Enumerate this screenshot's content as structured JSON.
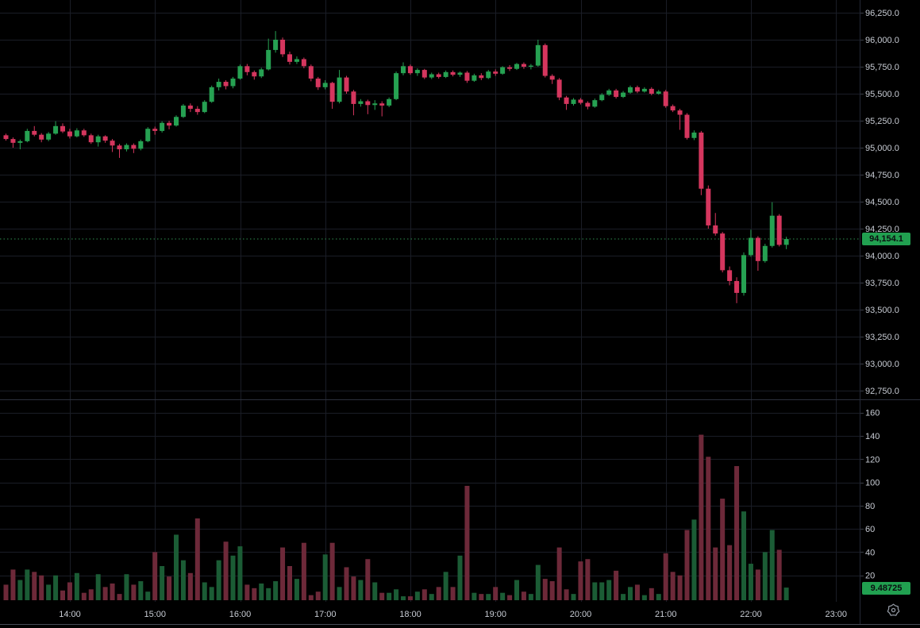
{
  "colors": {
    "background": "#000000",
    "grid": "#1a1d26",
    "axis_text": "#c8ccd4",
    "tick": "#3a3e47",
    "axis_border": "#242836",
    "pane_separator": "#2c303c",
    "frame_bottom": "#474b56",
    "up": "#26a152",
    "down": "#d5365e",
    "volume_up": "#1b5c35",
    "volume_down": "#6d2939",
    "price_line": "#2f8f52",
    "tag_bg": "#21a050",
    "tag_text": "#0b0e11",
    "icon": "#9096a0"
  },
  "price_axis": {
    "tick_labels": [
      "96,250.0",
      "96,000.0",
      "95,750.0",
      "95,500.0",
      "95,250.0",
      "95,000.0",
      "94,750.0",
      "94,500.0",
      "94,250.0",
      "94,000.0",
      "93,750.0",
      "93,500.0",
      "93,250.0",
      "93,000.0",
      "92,750.0"
    ],
    "last_price_label": "94,154.1",
    "last_price_value": 94154.1
  },
  "volume_axis": {
    "tick_labels": [
      "160",
      "140",
      "120",
      "100",
      "80",
      "60",
      "40",
      "20"
    ],
    "last_volume_label": "9.48725",
    "last_volume_value": 9.48725
  },
  "time_axis": {
    "tick_labels": [
      "14:00",
      "15:00",
      "16:00",
      "17:00",
      "18:00",
      "19:00",
      "20:00",
      "21:00",
      "22:00",
      "23:00"
    ],
    "settings_icon": "gear-icon"
  },
  "chart_data": {
    "type": "candlestick",
    "interval": "5m",
    "grid": true,
    "legend_position": "none",
    "price_ylim_visible": [
      92750,
      96250
    ],
    "volume_ylim_visible": [
      0,
      160
    ],
    "last_price": 94154.1,
    "last_volume": 9.48725,
    "columns": [
      "time",
      "open",
      "high",
      "low",
      "close",
      "volume"
    ],
    "candles": [
      [
        "13:15",
        95115,
        95130,
        95065,
        95080,
        12
      ],
      [
        "13:20",
        95080,
        95095,
        95000,
        95045,
        25
      ],
      [
        "13:25",
        95045,
        95075,
        94985,
        95060,
        16
      ],
      [
        "13:30",
        95060,
        95175,
        95050,
        95155,
        25
      ],
      [
        "13:35",
        95155,
        95200,
        95105,
        95120,
        23
      ],
      [
        "13:40",
        95120,
        95135,
        95050,
        95075,
        20
      ],
      [
        "13:45",
        95075,
        95145,
        95060,
        95130,
        12
      ],
      [
        "13:50",
        95130,
        95245,
        95120,
        95200,
        20
      ],
      [
        "13:55",
        95200,
        95225,
        95135,
        95150,
        7
      ],
      [
        "14:00",
        95150,
        95175,
        95085,
        95105,
        14
      ],
      [
        "14:05",
        95105,
        95180,
        95095,
        95160,
        22
      ],
      [
        "14:10",
        95160,
        95175,
        95100,
        95115,
        5
      ],
      [
        "14:15",
        95115,
        95130,
        95035,
        95050,
        8
      ],
      [
        "14:20",
        95050,
        95120,
        95010,
        95105,
        21
      ],
      [
        "14:25",
        95105,
        95115,
        95045,
        95065,
        10
      ],
      [
        "14:30",
        95065,
        95080,
        94960,
        95020,
        13
      ],
      [
        "14:35",
        95020,
        95035,
        94905,
        94985,
        4
      ],
      [
        "14:40",
        94985,
        95040,
        94965,
        95025,
        21
      ],
      [
        "14:45",
        95025,
        95040,
        94950,
        94990,
        12
      ],
      [
        "14:50",
        94990,
        95075,
        94975,
        95060,
        15
      ],
      [
        "14:55",
        95060,
        95190,
        95050,
        95175,
        6
      ],
      [
        "15:00",
        95175,
        95195,
        95120,
        95155,
        40
      ],
      [
        "15:05",
        95155,
        95245,
        95140,
        95230,
        28
      ],
      [
        "15:10",
        95230,
        95250,
        95170,
        95205,
        19
      ],
      [
        "15:15",
        95205,
        95300,
        95195,
        95285,
        55
      ],
      [
        "15:20",
        95285,
        95405,
        95275,
        95390,
        33
      ],
      [
        "15:25",
        95390,
        95410,
        95330,
        95360,
        22
      ],
      [
        "15:30",
        95360,
        95385,
        95305,
        95330,
        69
      ],
      [
        "15:35",
        95330,
        95440,
        95320,
        95425,
        14
      ],
      [
        "15:40",
        95425,
        95575,
        95415,
        95560,
        10
      ],
      [
        "15:45",
        95560,
        95640,
        95530,
        95610,
        33
      ],
      [
        "15:50",
        95610,
        95625,
        95540,
        95570,
        49
      ],
      [
        "15:55",
        95570,
        95655,
        95550,
        95640,
        37
      ],
      [
        "16:00",
        95640,
        95770,
        95630,
        95755,
        45
      ],
      [
        "16:05",
        95755,
        95775,
        95670,
        95700,
        12
      ],
      [
        "16:10",
        95700,
        95715,
        95630,
        95660,
        9
      ],
      [
        "16:15",
        95660,
        95740,
        95645,
        95725,
        13
      ],
      [
        "16:20",
        95725,
        96010,
        95715,
        95905,
        9
      ],
      [
        "16:25",
        95905,
        96080,
        95880,
        96000,
        15
      ],
      [
        "16:30",
        96000,
        96020,
        95840,
        95865,
        44
      ],
      [
        "16:35",
        95865,
        95890,
        95770,
        95795,
        28
      ],
      [
        "16:40",
        95795,
        95845,
        95775,
        95820,
        17
      ],
      [
        "16:45",
        95820,
        95835,
        95735,
        95755,
        48
      ],
      [
        "16:50",
        95755,
        95770,
        95615,
        95640,
        3
      ],
      [
        "16:55",
        95640,
        95655,
        95535,
        95560,
        6
      ],
      [
        "17:00",
        95560,
        95625,
        95540,
        95600,
        38
      ],
      [
        "17:05",
        95600,
        95610,
        95360,
        95425,
        48
      ],
      [
        "17:10",
        95425,
        95720,
        95410,
        95650,
        10
      ],
      [
        "17:15",
        95650,
        95665,
        95500,
        95520,
        27
      ],
      [
        "17:20",
        95520,
        95535,
        95300,
        95405,
        19
      ],
      [
        "17:25",
        95405,
        95450,
        95380,
        95430,
        16
      ],
      [
        "17:30",
        95430,
        95445,
        95310,
        95395,
        34
      ],
      [
        "17:35",
        95395,
        95440,
        95350,
        95410,
        14
      ],
      [
        "17:40",
        95410,
        95430,
        95290,
        95390,
        5
      ],
      [
        "17:45",
        95390,
        95465,
        95375,
        95450,
        5
      ],
      [
        "17:50",
        95450,
        95705,
        95440,
        95690,
        8
      ],
      [
        "17:55",
        95690,
        95790,
        95670,
        95755,
        2
      ],
      [
        "18:00",
        95755,
        95770,
        95675,
        95690,
        2
      ],
      [
        "18:05",
        95690,
        95735,
        95665,
        95720,
        6
      ],
      [
        "18:10",
        95720,
        95730,
        95635,
        95650,
        8
      ],
      [
        "18:15",
        95650,
        95695,
        95635,
        95680,
        4
      ],
      [
        "18:20",
        95680,
        95695,
        95640,
        95655,
        10
      ],
      [
        "18:25",
        95655,
        95715,
        95645,
        95700,
        23
      ],
      [
        "18:30",
        95700,
        95715,
        95660,
        95675,
        10
      ],
      [
        "18:35",
        95675,
        95705,
        95655,
        95695,
        37
      ],
      [
        "18:40",
        95695,
        95710,
        95600,
        95620,
        97
      ],
      [
        "18:45",
        95620,
        95685,
        95610,
        95670,
        5
      ],
      [
        "18:50",
        95670,
        95690,
        95625,
        95645,
        4
      ],
      [
        "18:55",
        95645,
        95720,
        95635,
        95705,
        4
      ],
      [
        "19:00",
        95705,
        95725,
        95665,
        95685,
        10
      ],
      [
        "19:05",
        95685,
        95755,
        95675,
        95745,
        5
      ],
      [
        "19:10",
        95745,
        95765,
        95710,
        95730,
        3
      ],
      [
        "19:15",
        95730,
        95785,
        95720,
        95775,
        16
      ],
      [
        "19:20",
        95775,
        95790,
        95730,
        95750,
        6
      ],
      [
        "19:25",
        95750,
        95775,
        95725,
        95760,
        4
      ],
      [
        "19:30",
        95760,
        96000,
        95750,
        95950,
        29
      ],
      [
        "19:35",
        95950,
        95965,
        95650,
        95665,
        17
      ],
      [
        "19:40",
        95665,
        95680,
        95590,
        95630,
        15
      ],
      [
        "19:45",
        95630,
        95645,
        95440,
        95465,
        44
      ],
      [
        "19:50",
        95465,
        95480,
        95350,
        95405,
        8
      ],
      [
        "19:55",
        95405,
        95460,
        95390,
        95445,
        4
      ],
      [
        "20:00",
        95445,
        95460,
        95400,
        95415,
        32
      ],
      [
        "20:05",
        95415,
        95430,
        95355,
        95380,
        34
      ],
      [
        "20:10",
        95380,
        95455,
        95370,
        95440,
        14
      ],
      [
        "20:15",
        95440,
        95505,
        95430,
        95490,
        14
      ],
      [
        "20:20",
        95490,
        95545,
        95480,
        95530,
        16
      ],
      [
        "20:25",
        95530,
        95545,
        95455,
        95470,
        24
      ],
      [
        "20:30",
        95470,
        95525,
        95460,
        95510,
        4
      ],
      [
        "20:35",
        95510,
        95575,
        95500,
        95560,
        10
      ],
      [
        "20:40",
        95560,
        95575,
        95505,
        95520,
        12
      ],
      [
        "20:45",
        95520,
        95560,
        95510,
        95545,
        3
      ],
      [
        "20:50",
        95545,
        95560,
        95485,
        95500,
        9
      ],
      [
        "20:55",
        95500,
        95535,
        95490,
        95520,
        4
      ],
      [
        "21:00",
        95520,
        95535,
        95370,
        95385,
        39
      ],
      [
        "21:05",
        95385,
        95400,
        95330,
        95345,
        23
      ],
      [
        "21:10",
        95345,
        95360,
        95165,
        95305,
        20
      ],
      [
        "21:15",
        95305,
        95320,
        95075,
        95090,
        59
      ],
      [
        "21:20",
        95090,
        95160,
        95070,
        95140,
        68
      ],
      [
        "21:25",
        95140,
        95155,
        94560,
        94620,
        141
      ],
      [
        "21:30",
        94620,
        94650,
        94250,
        94280,
        122
      ],
      [
        "21:35",
        94280,
        94395,
        94185,
        94205,
        44
      ],
      [
        "21:40",
        94205,
        94220,
        93845,
        93865,
        86
      ],
      [
        "21:45",
        93865,
        93900,
        93725,
        93765,
        46
      ],
      [
        "21:50",
        93765,
        93800,
        93560,
        93655,
        114
      ],
      [
        "21:55",
        93655,
        94030,
        93630,
        94005,
        75
      ],
      [
        "22:00",
        94005,
        94240,
        93990,
        94165,
        30
      ],
      [
        "22:05",
        94165,
        94180,
        93860,
        93950,
        25
      ],
      [
        "22:10",
        93950,
        94110,
        93935,
        94090,
        40
      ],
      [
        "22:15",
        94090,
        94495,
        94075,
        94370,
        59
      ],
      [
        "22:20",
        94370,
        94385,
        94085,
        94100,
        42
      ],
      [
        "22:25",
        94100,
        94175,
        94060,
        94154.1,
        9.48725
      ]
    ]
  }
}
